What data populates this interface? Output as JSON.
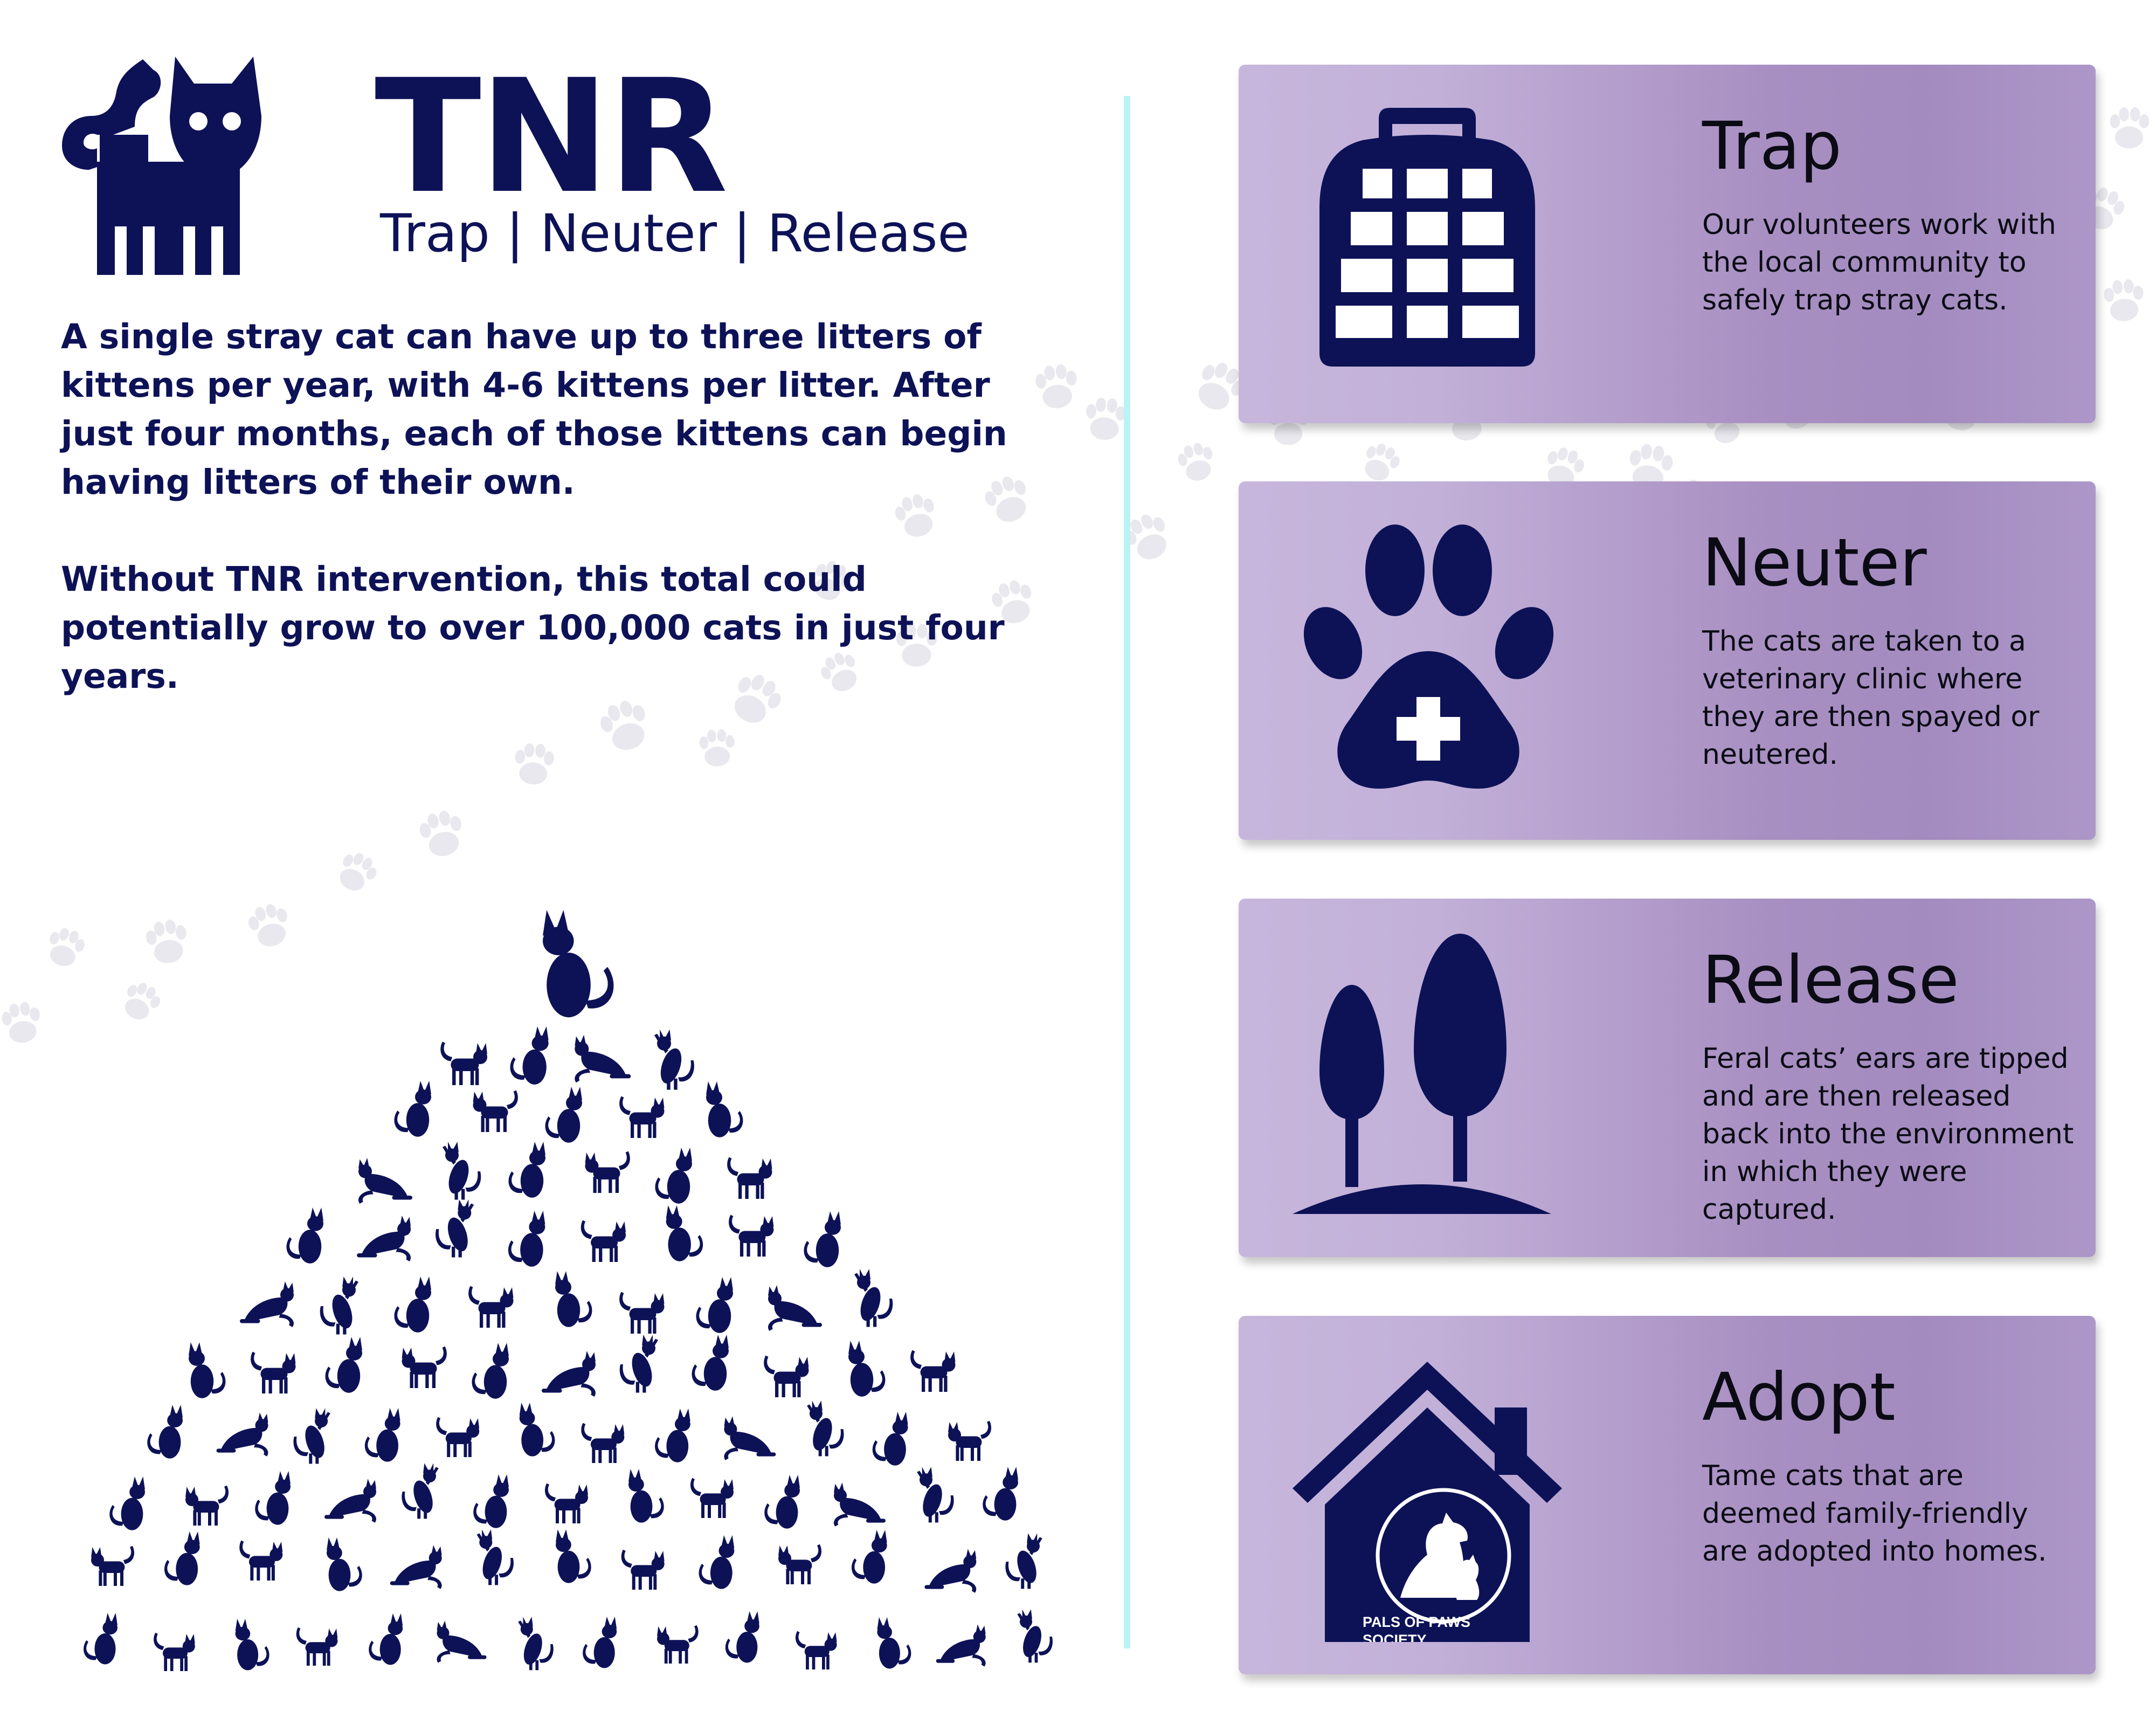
{
  "header": {
    "logo_icon": "cat-icon",
    "title": "TNR",
    "subtitle": "Trap | Neuter | Release"
  },
  "intro": {
    "paragraph_1": "A single stray cat can have up to three litters of kittens per year, with 4-6 kittens per litter. After just four months, each of those kittens can begin having litters of their own.",
    "paragraph_2": "Without TNR intervention, this total could potentially grow to over 100,000 cats in just four years."
  },
  "illustration": {
    "icon": "cat-pyramid-icon",
    "background_icon": "paw-print-icon"
  },
  "steps": [
    {
      "icon": "pet-carrier-icon",
      "title": "Trap",
      "text": "Our volunteers work with the local community to safely trap stray cats."
    },
    {
      "icon": "paw-medical-cross-icon",
      "title": "Neuter",
      "text": "The cats are taken to a veterinary clinic where they are then spayed or neutered."
    },
    {
      "icon": "trees-icon",
      "title": "Release",
      "text": "Feral cats’ ears are tipped and are then released back into the environment in which they were captured."
    },
    {
      "icon": "house-icon",
      "title": "Adopt",
      "text": "Tame cats that are deemed family-friendly are adopted into homes.",
      "badge_text": "PALS OF PAWS SOCIETY"
    }
  ],
  "colors": {
    "navy": "#0d1257",
    "divider": "#b9f3f6",
    "card_light": "#c7b6dc",
    "card_dark": "#a38bbf",
    "text_dark": "#0b0b14"
  }
}
